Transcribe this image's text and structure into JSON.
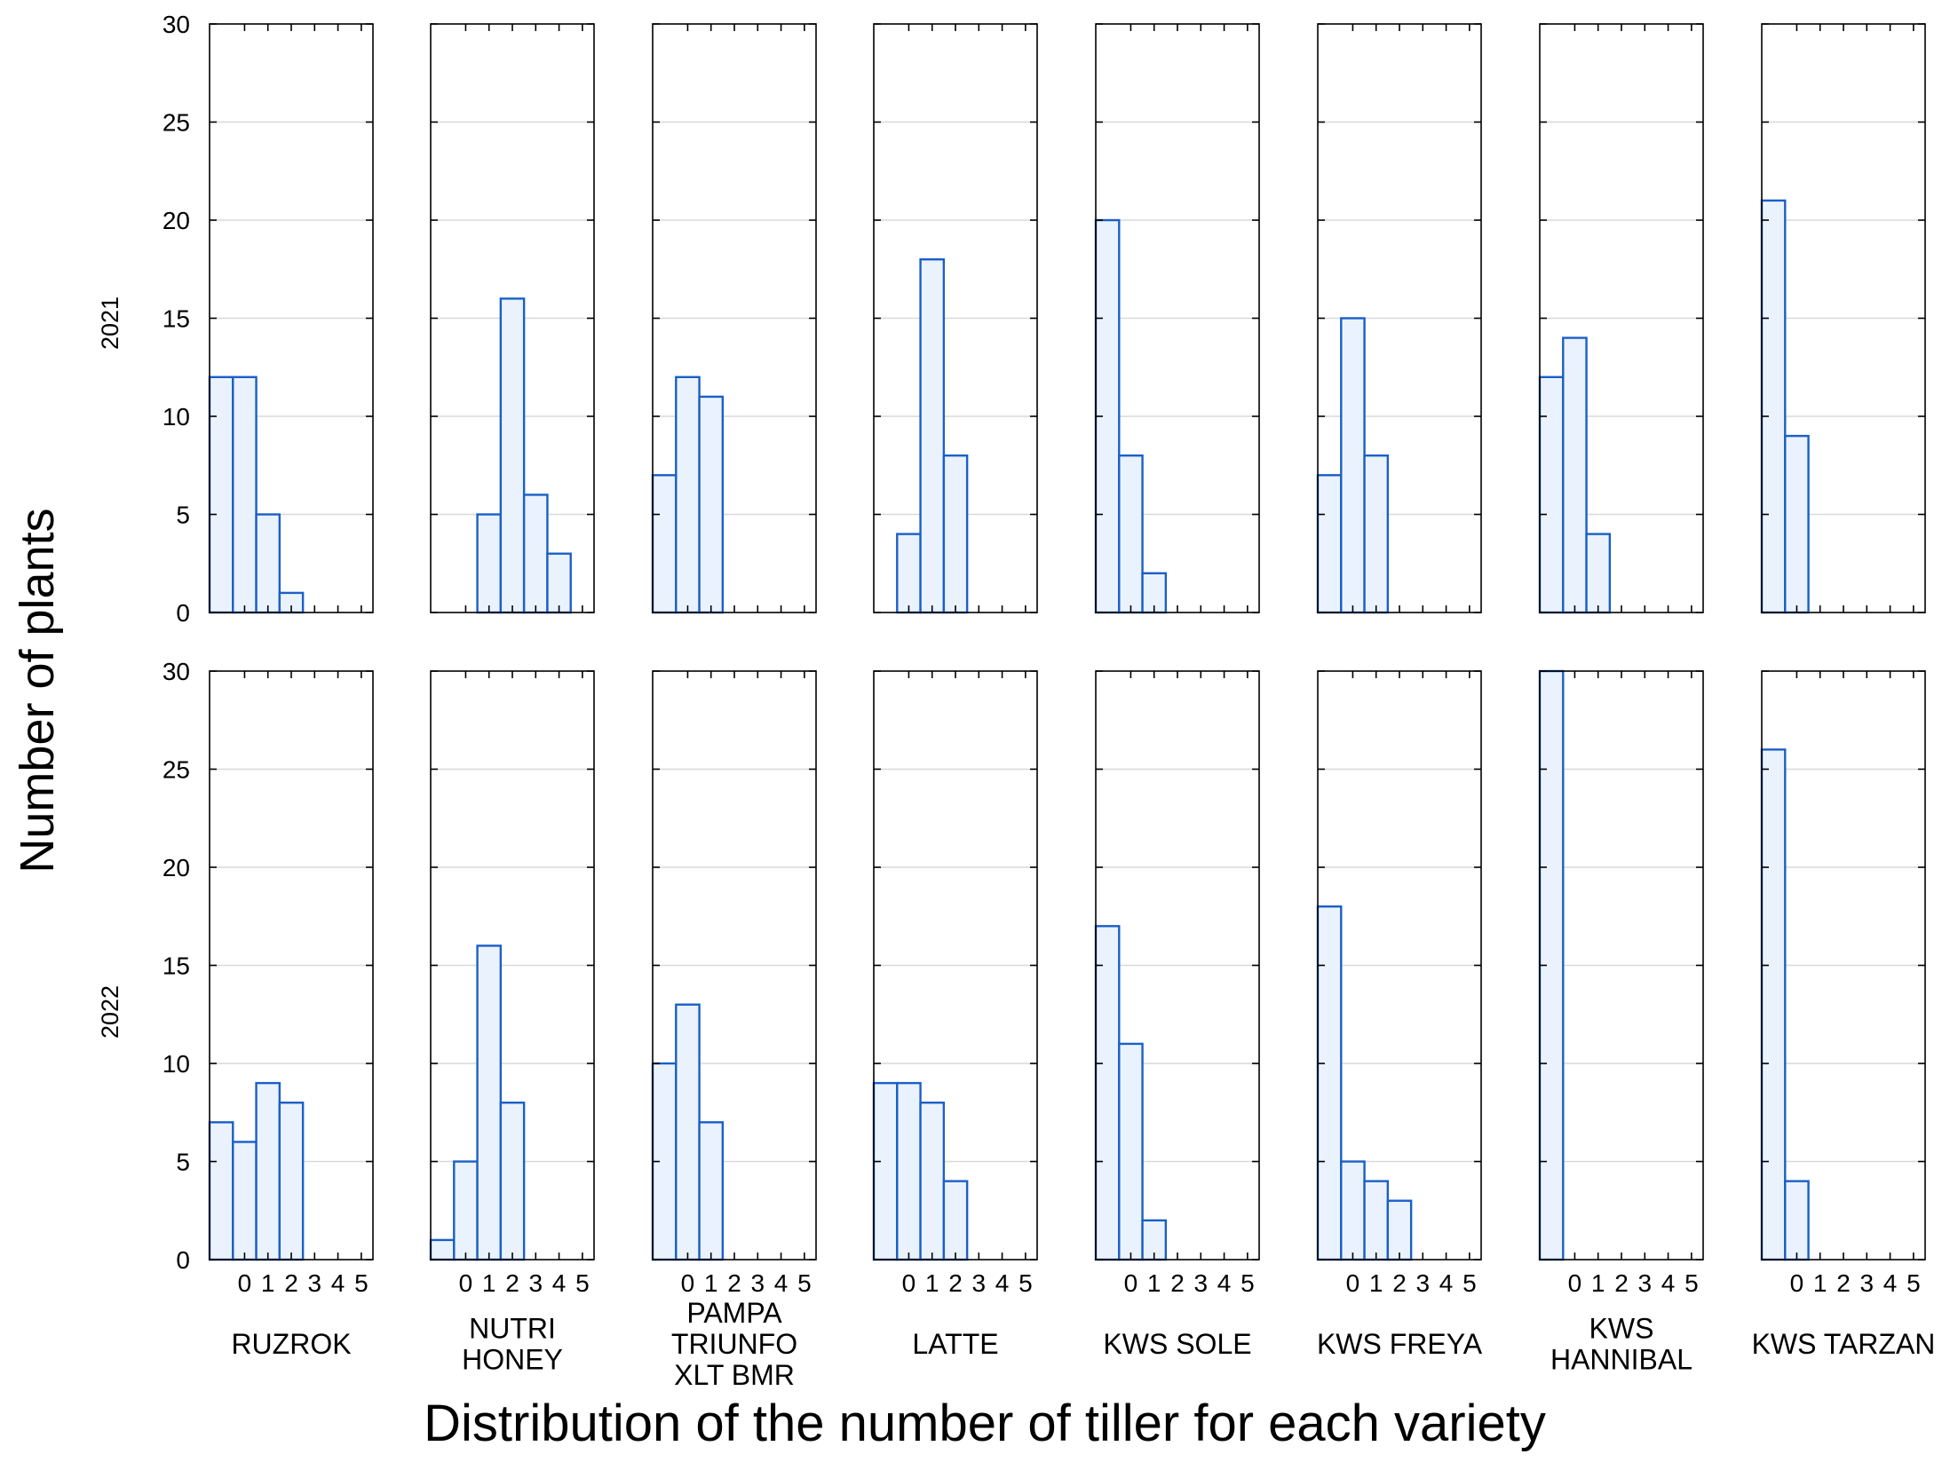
{
  "chart_data": {
    "type": "bar",
    "subtype": "histogram-panel-grid",
    "ylabel": "Number of plants",
    "xlabel": "Distribution of the number of tiller for each variety",
    "rows": [
      "2021",
      "2022"
    ],
    "varieties": [
      {
        "label_lines": [
          "RUZROK"
        ]
      },
      {
        "label_lines": [
          "NUTRI",
          "HONEY"
        ]
      },
      {
        "label_lines": [
          "PAMPA",
          "TRIUNFO",
          "XLT BMR"
        ]
      },
      {
        "label_lines": [
          "LATTE"
        ]
      },
      {
        "label_lines": [
          "KWS SOLE"
        ]
      },
      {
        "label_lines": [
          "KWS FREYA"
        ]
      },
      {
        "label_lines": [
          "KWS",
          "HANNIBAL"
        ]
      },
      {
        "label_lines": [
          "KWS TARZAN"
        ]
      }
    ],
    "y_ticks": [
      0,
      5,
      10,
      15,
      20,
      25,
      30
    ],
    "ylim": [
      0,
      30
    ],
    "x_tick_labels": [
      "0",
      "1",
      "2",
      "3",
      "4",
      "5"
    ],
    "xlim": [
      -1.5,
      5.5
    ],
    "bar_width": 1,
    "series": [
      [
        {
          "start": -1.5,
          "values": [
            12,
            12,
            5,
            1
          ]
        },
        {
          "start": 0.5,
          "values": [
            5,
            16,
            6,
            3
          ]
        },
        {
          "start": -1.5,
          "values": [
            7,
            12,
            11
          ]
        },
        {
          "start": -0.5,
          "values": [
            4,
            18,
            8
          ]
        },
        {
          "start": -1.5,
          "values": [
            20,
            8,
            2
          ]
        },
        {
          "start": -1.5,
          "values": [
            7,
            15,
            8
          ]
        },
        {
          "start": -1.5,
          "values": [
            12,
            14,
            4
          ]
        },
        {
          "start": -1.5,
          "values": [
            21,
            9
          ]
        }
      ],
      [
        {
          "start": -1.5,
          "values": [
            7,
            6,
            9,
            8
          ]
        },
        {
          "start": -1.5,
          "values": [
            1,
            5,
            16,
            8
          ]
        },
        {
          "start": -1.5,
          "values": [
            10,
            13,
            7
          ]
        },
        {
          "start": -1.5,
          "values": [
            9,
            9,
            8,
            4
          ]
        },
        {
          "start": -1.5,
          "values": [
            17,
            11,
            2
          ]
        },
        {
          "start": -1.5,
          "values": [
            18,
            5,
            4,
            3
          ]
        },
        {
          "start": -1.5,
          "values": [
            30
          ]
        },
        {
          "start": -1.5,
          "values": [
            26,
            4
          ]
        }
      ]
    ],
    "colors": {
      "bar_top": "#1e88ff",
      "bar_bottom": "#eaf3fd",
      "bar_edge": "#1a5fc8"
    }
  }
}
